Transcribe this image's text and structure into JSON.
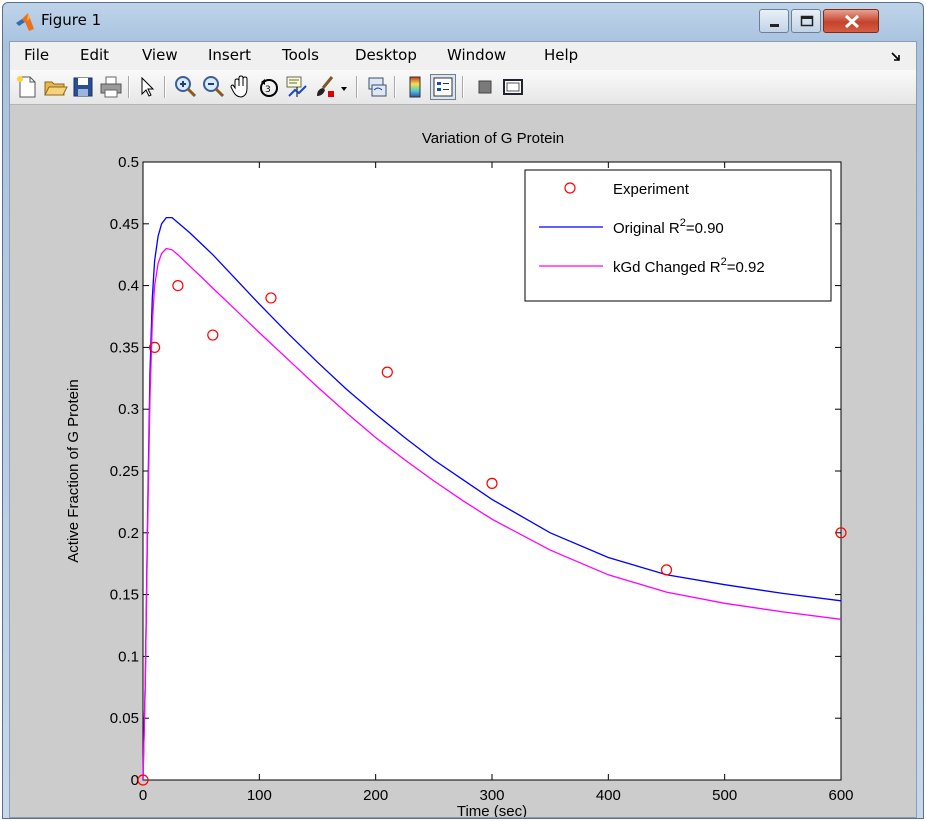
{
  "window": {
    "title": "Figure 1",
    "icon": "matlab-logo-icon"
  },
  "menu": {
    "items": [
      "File",
      "Edit",
      "View",
      "Insert",
      "Tools",
      "Desktop",
      "Window",
      "Help"
    ]
  },
  "toolbar": {
    "buttons": [
      "new-figure-icon",
      "open-file-icon",
      "save-icon",
      "print-icon",
      "edit-plot-icon",
      "zoom-in-icon",
      "zoom-out-icon",
      "pan-icon",
      "rotate-3d-icon",
      "data-cursor-icon",
      "brush-icon",
      "brush-dropdown-icon",
      "link-plot-icon",
      "insert-colorbar-icon",
      "insert-legend-icon",
      "hide-plot-tools-icon",
      "show-plot-tools-icon"
    ]
  },
  "colors": {
    "figure_background": "#cccccc",
    "axes_background": "#ffffff",
    "original_line": "#0000ff",
    "changed_line": "#ff00ff",
    "experiment_marker": "#ff0000"
  },
  "chart_data": {
    "type": "line",
    "title": "Variation of G Protein",
    "xlabel": "Time (sec)",
    "ylabel": "Active Fraction of G Protein",
    "xlim": [
      0,
      600
    ],
    "ylim": [
      0,
      0.5
    ],
    "xticks": [
      "0",
      "100",
      "200",
      "300",
      "400",
      "500",
      "600"
    ],
    "yticks": [
      "0",
      "0.05",
      "0.1",
      "0.15",
      "0.2",
      "0.25",
      "0.3",
      "0.35",
      "0.4",
      "0.45",
      "0.5"
    ],
    "grid": false,
    "legend_position": "top-right",
    "series": [
      {
        "name": "Experiment",
        "kind": "markers",
        "marker": "circle",
        "color": "#ff0000",
        "x": [
          0,
          10,
          30,
          60,
          110,
          210,
          300,
          450,
          600
        ],
        "y": [
          0,
          0.35,
          0.4,
          0.36,
          0.39,
          0.33,
          0.24,
          0.17,
          0.2
        ]
      },
      {
        "name": "Original R",
        "name_sup": "2",
        "name_suffix": "=0.90",
        "kind": "line",
        "color": "#0000ff",
        "x": [
          0,
          2,
          4,
          6,
          8,
          10,
          13,
          16,
          20,
          25,
          30,
          40,
          50,
          60,
          80,
          100,
          125,
          150,
          175,
          200,
          225,
          250,
          275,
          300,
          350,
          400,
          450,
          500,
          550,
          600
        ],
        "y": [
          0,
          0.08,
          0.22,
          0.33,
          0.39,
          0.42,
          0.44,
          0.45,
          0.455,
          0.455,
          0.451,
          0.443,
          0.434,
          0.425,
          0.405,
          0.385,
          0.361,
          0.338,
          0.316,
          0.296,
          0.277,
          0.259,
          0.243,
          0.227,
          0.2,
          0.18,
          0.166,
          0.158,
          0.151,
          0.145
        ]
      },
      {
        "name": "kGd Changed R",
        "name_sup": "2",
        "name_suffix": "=0.92",
        "kind": "line",
        "color": "#ff00ff",
        "x": [
          0,
          2,
          4,
          6,
          8,
          10,
          13,
          16,
          20,
          25,
          30,
          40,
          50,
          60,
          80,
          100,
          125,
          150,
          175,
          200,
          225,
          250,
          275,
          300,
          350,
          400,
          450,
          500,
          550,
          600
        ],
        "y": [
          0,
          0.08,
          0.21,
          0.31,
          0.37,
          0.4,
          0.418,
          0.426,
          0.43,
          0.429,
          0.425,
          0.416,
          0.407,
          0.398,
          0.38,
          0.362,
          0.34,
          0.318,
          0.297,
          0.277,
          0.259,
          0.242,
          0.226,
          0.211,
          0.186,
          0.166,
          0.152,
          0.143,
          0.136,
          0.13
        ]
      }
    ]
  }
}
